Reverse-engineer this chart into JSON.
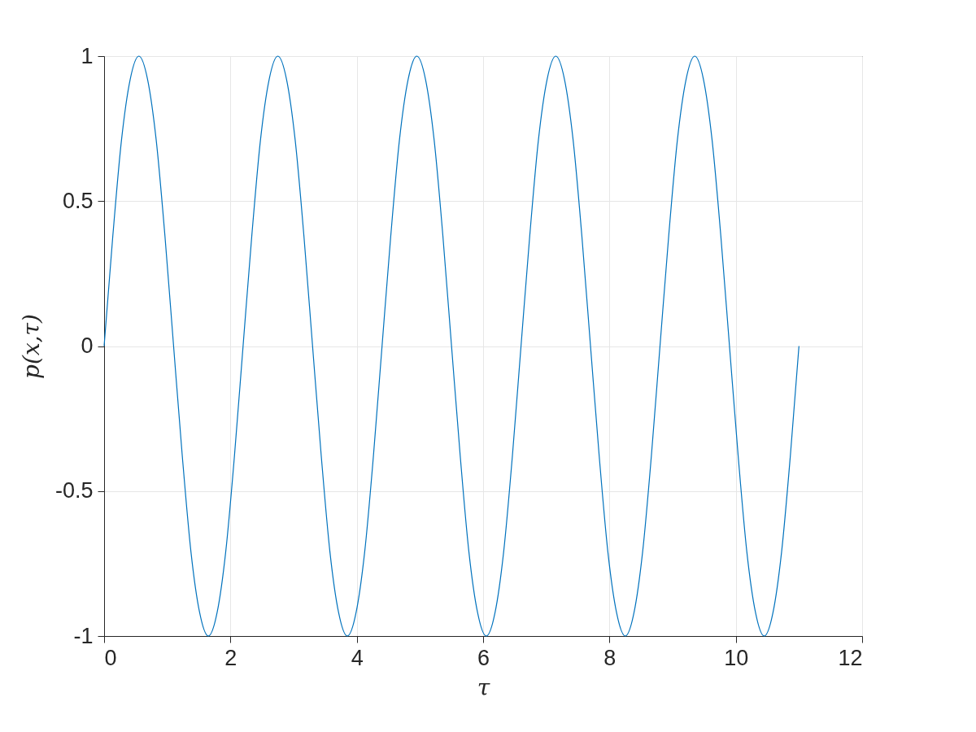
{
  "chart_data": {
    "type": "line",
    "xlabel": "τ",
    "ylabel": "p(x,τ)",
    "grid": true,
    "line_style": "solid",
    "xlim": [
      0,
      12
    ],
    "xticks": [
      0,
      2,
      4,
      6,
      8,
      10,
      12
    ],
    "ylim": [
      -1,
      1
    ],
    "yticks": [
      -1,
      -0.5,
      0,
      0.5,
      1
    ],
    "series": [
      {
        "color": "#0072bd",
        "x": [
          0,
          0.138,
          0.275,
          0.413,
          0.55,
          0.688,
          0.825,
          0.963,
          1.1,
          1.238,
          1.375,
          1.513,
          1.65,
          1.788,
          1.925,
          2.063,
          2.2,
          2.338,
          2.475,
          2.613,
          2.75,
          2.888,
          3.025,
          3.163,
          3.3,
          3.438,
          3.575,
          3.713,
          3.85,
          3.988,
          4.125,
          4.263,
          4.4,
          4.538,
          4.675,
          4.813,
          4.95,
          5.088,
          5.225,
          5.363,
          5.5,
          5.638,
          5.775,
          5.913,
          6.05,
          6.188,
          6.325,
          6.463,
          6.6,
          6.738,
          6.875,
          7.013,
          7.15,
          7.288,
          7.425,
          7.563,
          7.7,
          7.838,
          7.975,
          8.113,
          8.25,
          8.388,
          8.525,
          8.663,
          8.8,
          8.938,
          9.075,
          9.213,
          9.35,
          9.488,
          9.625,
          9.763,
          9.9,
          10.038,
          10.175,
          10.313,
          10.45,
          10.588,
          10.725,
          10.863,
          11
        ],
        "values": [
          0,
          0.38,
          0.71,
          0.92,
          1,
          0.92,
          0.71,
          0.38,
          0,
          -0.38,
          -0.71,
          -0.92,
          -1,
          -0.92,
          -0.71,
          -0.38,
          0,
          0.38,
          0.71,
          0.92,
          1,
          0.92,
          0.71,
          0.38,
          0,
          -0.38,
          -0.71,
          -0.92,
          -1,
          -0.92,
          -0.71,
          -0.38,
          0,
          0.38,
          0.71,
          0.92,
          1,
          0.92,
          0.71,
          0.38,
          0,
          -0.38,
          -0.71,
          -0.92,
          -1,
          -0.92,
          -0.71,
          -0.38,
          0,
          0.38,
          0.71,
          0.92,
          1,
          0.92,
          0.71,
          0.38,
          0,
          -0.38,
          -0.71,
          -0.92,
          -1,
          -0.92,
          -0.71,
          -0.38,
          0,
          0.38,
          0.71,
          0.92,
          1,
          0.92,
          0.71,
          0.38,
          0,
          -0.38,
          -0.71,
          -0.92,
          -1,
          -0.92,
          -0.71,
          -0.38,
          0
        ]
      }
    ]
  }
}
